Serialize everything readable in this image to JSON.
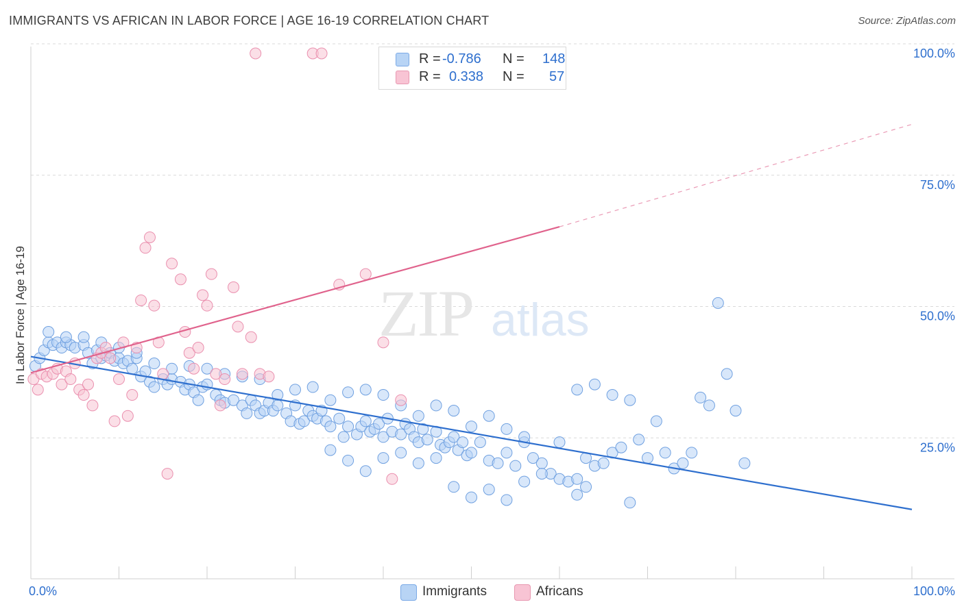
{
  "header": {
    "title": "IMMIGRANTS VS AFRICAN IN LABOR FORCE | AGE 16-19 CORRELATION CHART",
    "source": "Source: ZipAtlas.com"
  },
  "watermark": {
    "zip": "ZIP",
    "atlas": "atlas"
  },
  "legend": {
    "r_label": "R =",
    "n_label": "N =",
    "rows": [
      {
        "r": "-0.786",
        "n": "148",
        "swatch_fill": "#b8d4f5",
        "swatch_stroke": "#7aa9e6"
      },
      {
        "r": "0.338",
        "n": "57",
        "swatch_fill": "#f8c4d4",
        "swatch_stroke": "#e897b0"
      }
    ]
  },
  "bottom_legend": [
    {
      "label": "Immigrants",
      "swatch_fill": "#b8d4f5",
      "swatch_stroke": "#7aa9e6"
    },
    {
      "label": "Africans",
      "swatch_fill": "#f8c4d4",
      "swatch_stroke": "#e897b0"
    }
  ],
  "chart_data": {
    "type": "scatter",
    "title": "IMMIGRANTS VS AFRICAN IN LABOR FORCE | AGE 16-19 CORRELATION CHART",
    "ylabel": "In Labor Force | Age 16-19",
    "xlim": [
      0,
      100
    ],
    "ylim": [
      0,
      100
    ],
    "x_tick_labels": [
      "0.0%",
      "100.0%"
    ],
    "y_tick_labels": [
      {
        "value": 25,
        "label": "25.0%"
      },
      {
        "value": 50,
        "label": "50.0%"
      },
      {
        "value": 75,
        "label": "75.0%"
      },
      {
        "value": 100,
        "label": "100.0%"
      }
    ],
    "grid": "horizontal dashed",
    "legend_placement": "top-center",
    "colors": {
      "immigrants": "#2e6fce",
      "africans": "#e0628c"
    },
    "series": [
      {
        "name": "Immigrants",
        "color": "#6fa0e0",
        "trend": {
          "x0": 0,
          "y0": 42.3,
          "x1": 100,
          "y1": 13.2
        },
        "points": [
          [
            0.5,
            40.5
          ],
          [
            1,
            42
          ],
          [
            1.5,
            43.5
          ],
          [
            2,
            45
          ],
          [
            2.5,
            44.5
          ],
          [
            3,
            45
          ],
          [
            3.5,
            44
          ],
          [
            4,
            45
          ],
          [
            4.5,
            44.5
          ],
          [
            5,
            44
          ],
          [
            6,
            44.5
          ],
          [
            6.5,
            43
          ],
          [
            7,
            41
          ],
          [
            7.5,
            43.5
          ],
          [
            8,
            42
          ],
          [
            8.5,
            42.5
          ],
          [
            9,
            43
          ],
          [
            9.5,
            41.5
          ],
          [
            10,
            42
          ],
          [
            10.5,
            41
          ],
          [
            11,
            41.5
          ],
          [
            11.5,
            40
          ],
          [
            12,
            42
          ],
          [
            12.5,
            38.5
          ],
          [
            13,
            39.5
          ],
          [
            13.5,
            37.5
          ],
          [
            14,
            36.5
          ],
          [
            15,
            38
          ],
          [
            15.5,
            37
          ],
          [
            16,
            38
          ],
          [
            17,
            37.5
          ],
          [
            17.5,
            36
          ],
          [
            18,
            37
          ],
          [
            18.5,
            35.5
          ],
          [
            19,
            34
          ],
          [
            19.5,
            36.5
          ],
          [
            20,
            37
          ],
          [
            21,
            35
          ],
          [
            21.5,
            34
          ],
          [
            22,
            33.5
          ],
          [
            23,
            34
          ],
          [
            24,
            33
          ],
          [
            24.5,
            31.5
          ],
          [
            25,
            34
          ],
          [
            25.5,
            33
          ],
          [
            26,
            31.5
          ],
          [
            26.5,
            32
          ],
          [
            27,
            33.5
          ],
          [
            27.5,
            32
          ],
          [
            28,
            33
          ],
          [
            29,
            31.5
          ],
          [
            29.5,
            30
          ],
          [
            30,
            33
          ],
          [
            30.5,
            29.5
          ],
          [
            31,
            30
          ],
          [
            31.5,
            32
          ],
          [
            32,
            31
          ],
          [
            32.5,
            30.5
          ],
          [
            33,
            32
          ],
          [
            33.5,
            30
          ],
          [
            34,
            29
          ],
          [
            35,
            30.5
          ],
          [
            35.5,
            27
          ],
          [
            36,
            29
          ],
          [
            37,
            27.5
          ],
          [
            37.5,
            29
          ],
          [
            38,
            30
          ],
          [
            38.5,
            28
          ],
          [
            39,
            28.5
          ],
          [
            39.5,
            29.5
          ],
          [
            40,
            27
          ],
          [
            40.5,
            30.5
          ],
          [
            41,
            28
          ],
          [
            42,
            27.5
          ],
          [
            42.5,
            29.5
          ],
          [
            43,
            28.5
          ],
          [
            43.5,
            27
          ],
          [
            44,
            26
          ],
          [
            44.5,
            28.5
          ],
          [
            45,
            26.5
          ],
          [
            46,
            28
          ],
          [
            46.5,
            25.5
          ],
          [
            47,
            25
          ],
          [
            47.5,
            26
          ],
          [
            48,
            27
          ],
          [
            48.5,
            24.5
          ],
          [
            49,
            26
          ],
          [
            49.5,
            23.5
          ],
          [
            50,
            24
          ],
          [
            51,
            26
          ],
          [
            52,
            22.5
          ],
          [
            53,
            22
          ],
          [
            54,
            24
          ],
          [
            55,
            21.5
          ],
          [
            56,
            26
          ],
          [
            57,
            23
          ],
          [
            58,
            22
          ],
          [
            59,
            20
          ],
          [
            60,
            19
          ],
          [
            61,
            18.5
          ],
          [
            62,
            16
          ],
          [
            63,
            23
          ],
          [
            64,
            21.5
          ],
          [
            65,
            22
          ],
          [
            66,
            24
          ],
          [
            67,
            25
          ],
          [
            68,
            14.5
          ],
          [
            69,
            26.5
          ],
          [
            70,
            23
          ],
          [
            71,
            30
          ],
          [
            72,
            24
          ],
          [
            73,
            21
          ],
          [
            74,
            22
          ],
          [
            75,
            24
          ],
          [
            76,
            34.5
          ],
          [
            77,
            33
          ],
          [
            78,
            52.5
          ],
          [
            79,
            39
          ],
          [
            80,
            32
          ],
          [
            81,
            22
          ],
          [
            62,
            36
          ],
          [
            64,
            37
          ],
          [
            66,
            35
          ],
          [
            68,
            34
          ],
          [
            56,
            27
          ],
          [
            54,
            28.5
          ],
          [
            52,
            31
          ],
          [
            50,
            29
          ],
          [
            48,
            32
          ],
          [
            46,
            33
          ],
          [
            44,
            31
          ],
          [
            42,
            33
          ],
          [
            40,
            35
          ],
          [
            38,
            36
          ],
          [
            36,
            35.5
          ],
          [
            34,
            34
          ],
          [
            32,
            36.5
          ],
          [
            30,
            36
          ],
          [
            28,
            35
          ],
          [
            26,
            38
          ],
          [
            24,
            38.5
          ],
          [
            22,
            39
          ],
          [
            20,
            40
          ],
          [
            18,
            40.5
          ],
          [
            16,
            40
          ],
          [
            14,
            41
          ],
          [
            12,
            43
          ],
          [
            10,
            44
          ],
          [
            8,
            45
          ],
          [
            6,
            46
          ],
          [
            4,
            46
          ],
          [
            2,
            47
          ],
          [
            60,
            26
          ],
          [
            58,
            20
          ],
          [
            56,
            18.5
          ],
          [
            54,
            15
          ],
          [
            52,
            17
          ],
          [
            50,
            15.5
          ],
          [
            48,
            17.5
          ],
          [
            46,
            23
          ],
          [
            44,
            22
          ],
          [
            42,
            24
          ],
          [
            40,
            23
          ],
          [
            38,
            20.5
          ],
          [
            36,
            22.5
          ],
          [
            34,
            24.5
          ],
          [
            62,
            19
          ],
          [
            63,
            17.5
          ]
        ]
      },
      {
        "name": "Africans",
        "color": "#ea8fae",
        "trend": {
          "x0": 0,
          "y0": 39.2,
          "x1": 60,
          "y1": 67.0,
          "x_dash_end": 100,
          "y_dash_end": 86.5
        },
        "points": [
          [
            0.3,
            38
          ],
          [
            0.8,
            36
          ],
          [
            1.2,
            39
          ],
          [
            1.8,
            38.5
          ],
          [
            2.5,
            39
          ],
          [
            3,
            40
          ],
          [
            3.5,
            37
          ],
          [
            4,
            39.5
          ],
          [
            4.5,
            38
          ],
          [
            5,
            41
          ],
          [
            5.5,
            36
          ],
          [
            6,
            35
          ],
          [
            6.5,
            37
          ],
          [
            7,
            33
          ],
          [
            7.5,
            42
          ],
          [
            8,
            43
          ],
          [
            8.5,
            44
          ],
          [
            9,
            42
          ],
          [
            9.5,
            30
          ],
          [
            10,
            38
          ],
          [
            10.5,
            45
          ],
          [
            11,
            31
          ],
          [
            11.5,
            35
          ],
          [
            12,
            44
          ],
          [
            12.5,
            53
          ],
          [
            13,
            63
          ],
          [
            13.5,
            65
          ],
          [
            14,
            52
          ],
          [
            14.5,
            45
          ],
          [
            15,
            39
          ],
          [
            15.5,
            20
          ],
          [
            16,
            60
          ],
          [
            17,
            57
          ],
          [
            17.5,
            47
          ],
          [
            18,
            43
          ],
          [
            18.5,
            40
          ],
          [
            19,
            44
          ],
          [
            19.5,
            54
          ],
          [
            20,
            52
          ],
          [
            20.5,
            58
          ],
          [
            21,
            39
          ],
          [
            21.5,
            33
          ],
          [
            22,
            38
          ],
          [
            23,
            55.5
          ],
          [
            23.5,
            48
          ],
          [
            24,
            39
          ],
          [
            25,
            46
          ],
          [
            25.5,
            100
          ],
          [
            26,
            39
          ],
          [
            27,
            38.5
          ],
          [
            32,
            100
          ],
          [
            33,
            100
          ],
          [
            35,
            56
          ],
          [
            38,
            58
          ],
          [
            40,
            45
          ],
          [
            41,
            19
          ],
          [
            42,
            34
          ]
        ]
      }
    ]
  }
}
